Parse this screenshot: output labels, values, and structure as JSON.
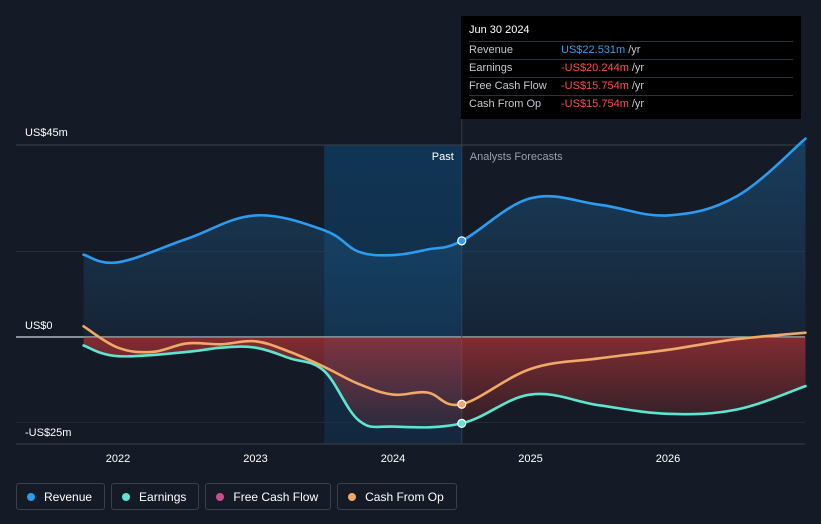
{
  "tooltip": {
    "date": "Jun 30 2024",
    "rows": [
      {
        "label": "Revenue",
        "value": "US$22.531m",
        "unit": "/yr",
        "color": "#3c9ee5"
      },
      {
        "label": "Earnings",
        "value": "-US$20.244m",
        "unit": "/yr",
        "color": "#ff4d4d"
      },
      {
        "label": "Free Cash Flow",
        "value": "-US$15.754m",
        "unit": "/yr",
        "color": "#ff4d4d"
      },
      {
        "label": "Cash From Op",
        "value": "-US$15.754m",
        "unit": "/yr",
        "color": "#ff4d4d"
      }
    ]
  },
  "legend": [
    {
      "label": "Revenue",
      "color": "#2d9cf0"
    },
    {
      "label": "Earnings",
      "color": "#5ee5cf"
    },
    {
      "label": "Free Cash Flow",
      "color": "#c84d8a"
    },
    {
      "label": "Cash From Op",
      "color": "#f0a966"
    }
  ],
  "colors": {
    "background": "#151b26",
    "revenue": "#2d9cf0",
    "earnings": "#5ee5cf",
    "cash_from_op": "#f0a966",
    "negative_fill": "#d93a3a",
    "past_band": "#0f3a5c"
  },
  "chart_data": {
    "type": "line",
    "title": "",
    "y_axis_labels": {
      "top": "US$45m",
      "zero": "US$0",
      "bottom": "-US$25m"
    },
    "ylim": [
      -25,
      45
    ],
    "xlim": [
      2021.5,
      2027.0
    ],
    "x_ticks": [
      2022,
      2023,
      2024,
      2025,
      2026
    ],
    "x_tick_labels": [
      "2022",
      "2023",
      "2024",
      "2025",
      "2026"
    ],
    "divider_x": 2024.5,
    "past_band_start": 2023.5,
    "past_label": "Past",
    "forecast_label": "Analysts Forecasts",
    "series": [
      {
        "name": "Revenue",
        "color": "#2d9cf0",
        "points": [
          [
            2021.75,
            19.3
          ],
          [
            2022.0,
            17.5
          ],
          [
            2022.5,
            23.0
          ],
          [
            2023.0,
            28.5
          ],
          [
            2023.5,
            25.0
          ],
          [
            2023.75,
            20.0
          ],
          [
            2024.0,
            19.2
          ],
          [
            2024.25,
            20.5
          ],
          [
            2024.5,
            22.531
          ],
          [
            2025.0,
            32.5
          ],
          [
            2025.5,
            31.0
          ],
          [
            2026.0,
            28.5
          ],
          [
            2026.5,
            33.0
          ],
          [
            2027.0,
            46.5
          ]
        ],
        "highlight_x": 2024.5
      },
      {
        "name": "Earnings",
        "color": "#5ee5cf",
        "points": [
          [
            2021.75,
            -2.0
          ],
          [
            2022.0,
            -4.5
          ],
          [
            2022.5,
            -3.5
          ],
          [
            2022.75,
            -2.5
          ],
          [
            2023.0,
            -2.5
          ],
          [
            2023.25,
            -5.0
          ],
          [
            2023.5,
            -8.0
          ],
          [
            2023.75,
            -19.5
          ],
          [
            2024.0,
            -21.0
          ],
          [
            2024.5,
            -20.244
          ],
          [
            2025.0,
            -13.5
          ],
          [
            2025.5,
            -16.0
          ],
          [
            2026.0,
            -18.0
          ],
          [
            2026.5,
            -17.0
          ],
          [
            2027.0,
            -11.5
          ]
        ],
        "highlight_x": 2024.5
      },
      {
        "name": "Cash From Op",
        "color": "#f0a966",
        "points": [
          [
            2021.75,
            2.5
          ],
          [
            2022.0,
            -2.5
          ],
          [
            2022.25,
            -3.5
          ],
          [
            2022.5,
            -1.5
          ],
          [
            2022.75,
            -1.7
          ],
          [
            2023.0,
            -1.0
          ],
          [
            2023.25,
            -3.5
          ],
          [
            2023.5,
            -7.0
          ],
          [
            2023.75,
            -11.0
          ],
          [
            2024.0,
            -13.5
          ],
          [
            2024.25,
            -13.0
          ],
          [
            2024.5,
            -15.754
          ],
          [
            2025.0,
            -7.5
          ],
          [
            2025.5,
            -5.0
          ],
          [
            2026.0,
            -3.0
          ],
          [
            2026.5,
            -0.5
          ],
          [
            2027.0,
            1.0
          ]
        ],
        "highlight_x": 2024.5
      }
    ]
  }
}
